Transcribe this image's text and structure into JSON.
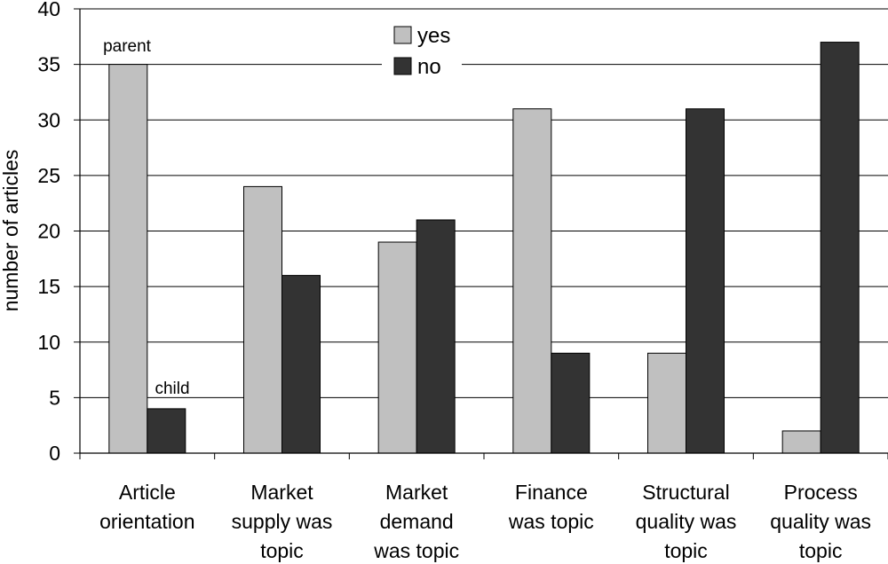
{
  "chart_data": {
    "type": "bar",
    "ylabel": "number of articles",
    "xlabel": "",
    "ylim": [
      0,
      40
    ],
    "yticks": [
      0,
      5,
      10,
      15,
      20,
      25,
      30,
      35,
      40
    ],
    "grid": true,
    "legend": "top-center",
    "categories": [
      [
        "Article",
        "orientation"
      ],
      [
        "Market",
        "supply was",
        "topic"
      ],
      [
        "Market",
        "demand",
        "was topic"
      ],
      [
        "Finance",
        "was topic"
      ],
      [
        "Structural",
        "quality was",
        "topic"
      ],
      [
        "Process",
        "quality was",
        "topic"
      ]
    ],
    "series": [
      {
        "name": "yes",
        "color": "#c0c0c0",
        "values": [
          35,
          24,
          19,
          31,
          9,
          2
        ]
      },
      {
        "name": "no",
        "color": "#333333",
        "values": [
          4,
          16,
          21,
          9,
          31,
          37
        ]
      }
    ],
    "annotations": [
      "parent",
      "child"
    ]
  }
}
